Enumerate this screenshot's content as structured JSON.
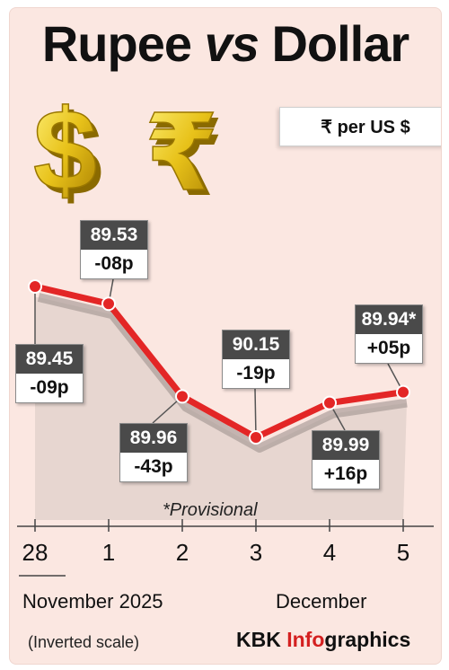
{
  "title": {
    "part1": "Rupee",
    "vs": "vs",
    "part2": "Dollar"
  },
  "unit_label": "₹ per US $",
  "note": "*Provisional",
  "scale_note": "(Inverted scale)",
  "credit": {
    "prefix": "KBK ",
    "highlight": "Info",
    "suffix": "graphics"
  },
  "emblem_icons": [
    "dollar-sign-icon",
    "rupee-sign-icon"
  ],
  "colors": {
    "line": "#e32626",
    "background": "#fbe7e1",
    "value_box": "#4a4a4a",
    "accent": "#d42020"
  },
  "chart_data": {
    "type": "line",
    "inverted_y": true,
    "x": [
      "28",
      "1",
      "2",
      "3",
      "4",
      "5"
    ],
    "x_groups": [
      {
        "label": "November 2025",
        "ticks": [
          "28"
        ]
      },
      {
        "label": "December",
        "ticks": [
          "1",
          "2",
          "3",
          "4",
          "5"
        ]
      }
    ],
    "values": [
      89.45,
      89.53,
      89.96,
      90.15,
      89.99,
      89.94
    ],
    "value_labels": [
      "89.45",
      "89.53",
      "89.96",
      "90.15",
      "89.99",
      "89.94*"
    ],
    "changes": [
      "-09p",
      "-08p",
      "-43p",
      "-19p",
      "+16p",
      "+05p"
    ],
    "ylim": [
      89.4,
      90.2
    ]
  }
}
